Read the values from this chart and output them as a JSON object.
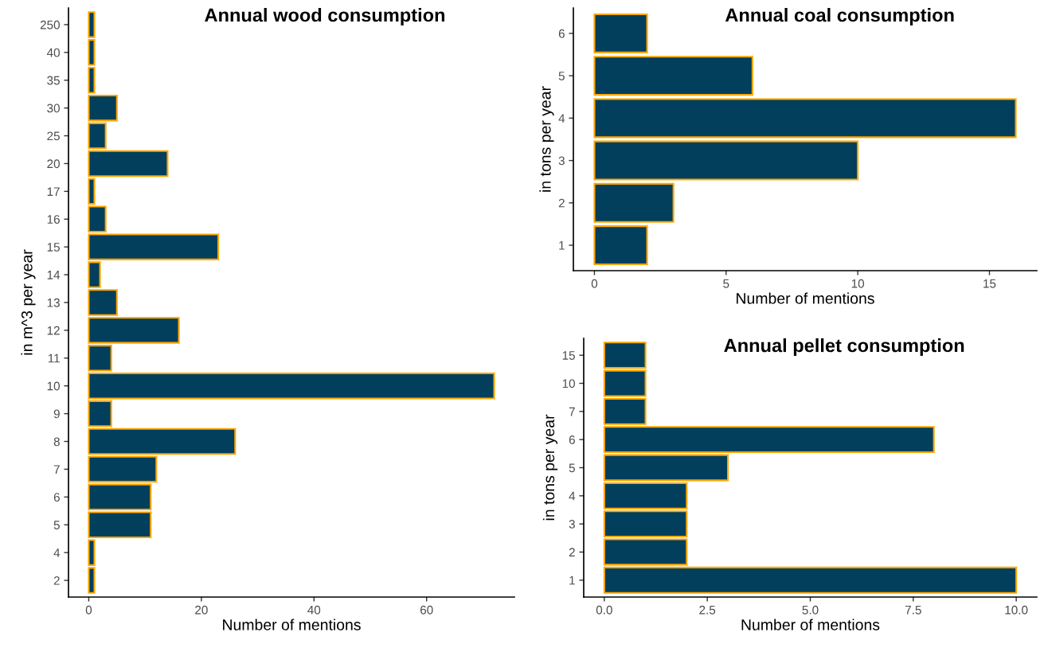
{
  "chart_data": [
    {
      "type": "bar",
      "orientation": "horizontal",
      "title": "Annual wood consumption",
      "xlabel": "Number of mentions",
      "ylabel": "in m^3 per year",
      "categories": [
        "250",
        "40",
        "35",
        "30",
        "25",
        "20",
        "17",
        "16",
        "15",
        "14",
        "13",
        "12",
        "11",
        "10",
        "9",
        "8",
        "7",
        "6",
        "5",
        "4",
        "2"
      ],
      "values": [
        1,
        1,
        1,
        5,
        3,
        14,
        1,
        3,
        23,
        2,
        5,
        16,
        4,
        72,
        4,
        26,
        12,
        11,
        11,
        1,
        1
      ],
      "color": "#023f5c",
      "xlim": [
        -3.6,
        75.6
      ],
      "xticks": [
        0,
        20,
        40,
        60
      ]
    },
    {
      "type": "bar",
      "orientation": "horizontal",
      "title": "Annual coal consumption",
      "xlabel": "Number of mentions",
      "ylabel": "in tons per year",
      "categories": [
        "6",
        "5",
        "4",
        "3",
        "2",
        "1"
      ],
      "values": [
        2,
        6,
        16,
        10,
        3,
        2
      ],
      "color": "#023f5c",
      "xlim": [
        -0.8,
        16.8
      ],
      "xticks": [
        0,
        5,
        10,
        15
      ]
    },
    {
      "type": "bar",
      "orientation": "horizontal",
      "title": "Annual pellet consumption",
      "xlabel": "Number of mentions",
      "ylabel": "in tons per year",
      "categories": [
        "15",
        "10",
        "7",
        "6",
        "5",
        "4",
        "3",
        "2",
        "1"
      ],
      "values": [
        1,
        1,
        1,
        8,
        3,
        2,
        2,
        2,
        10
      ],
      "color": "#023f5c",
      "xlim": [
        -0.5,
        10.5
      ],
      "xticks": [
        {
          "value": 0,
          "label": "0.0"
        },
        {
          "value": 2.5,
          "label": "2.5"
        },
        {
          "value": 5,
          "label": "5.0"
        },
        {
          "value": 7.5,
          "label": "7.5"
        },
        {
          "value": 10,
          "label": "10.0"
        }
      ]
    }
  ]
}
